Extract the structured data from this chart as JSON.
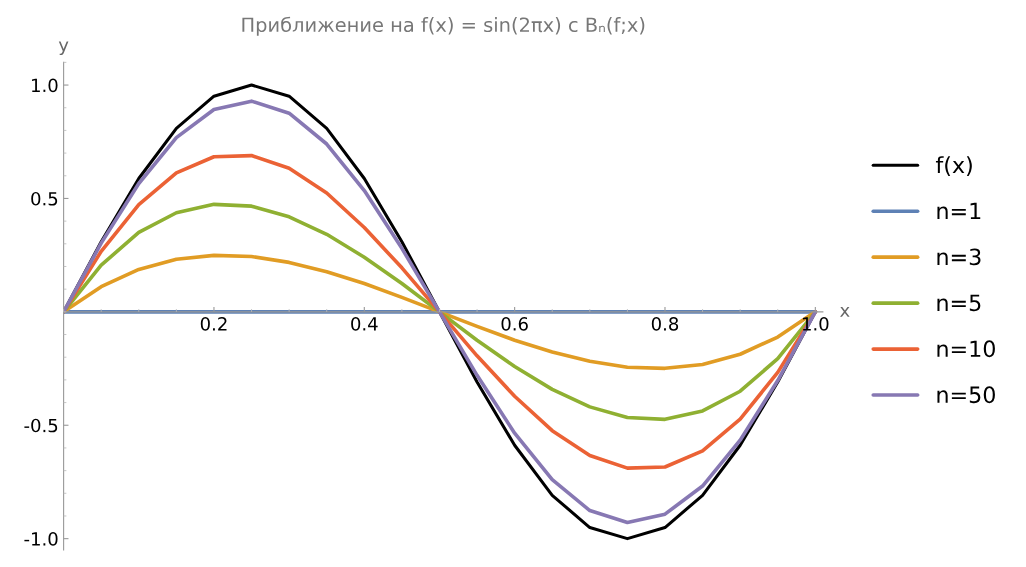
{
  "chart_data": {
    "type": "line",
    "title": "Приближение на f(x) = sin(2πx) с Bₙ(f;x)",
    "xlabel": "x",
    "ylabel": "y",
    "x": [
      0,
      0.05,
      0.1,
      0.15,
      0.2,
      0.25,
      0.3,
      0.35,
      0.4,
      0.45,
      0.5,
      0.55,
      0.6,
      0.65,
      0.7,
      0.75,
      0.8,
      0.85,
      0.9,
      0.95,
      1.0
    ],
    "series": [
      {
        "name": "f(x)",
        "color": "#000000",
        "values": [
          0,
          0.309,
          0.588,
          0.809,
          0.951,
          1,
          0.951,
          0.809,
          0.588,
          0.309,
          0,
          -0.309,
          -0.588,
          -0.809,
          -0.951,
          -1,
          -0.951,
          -0.809,
          -0.588,
          -0.309,
          0
        ]
      },
      {
        "name": "n=1",
        "color": "#5e81b5",
        "values": [
          0,
          0,
          0,
          0,
          0,
          0,
          0,
          0,
          0,
          0,
          0,
          0,
          0,
          0,
          0,
          0,
          0,
          0,
          0,
          0,
          0
        ]
      },
      {
        "name": "n=3",
        "color": "#e19c24",
        "values": [
          0,
          0.111,
          0.187,
          0.232,
          0.249,
          0.244,
          0.218,
          0.177,
          0.125,
          0.064,
          0,
          -0.064,
          -0.125,
          -0.177,
          -0.218,
          -0.244,
          -0.249,
          -0.232,
          -0.187,
          -0.111,
          0
        ]
      },
      {
        "name": "n=5",
        "color": "#8fb032",
        "values": [
          0,
          0.206,
          0.35,
          0.437,
          0.474,
          0.466,
          0.419,
          0.342,
          0.241,
          0.125,
          0,
          -0.125,
          -0.241,
          -0.342,
          -0.419,
          -0.466,
          -0.474,
          -0.437,
          -0.35,
          -0.206,
          0
        ]
      },
      {
        "name": "n=10",
        "color": "#eb6235",
        "values": [
          0,
          0.267,
          0.473,
          0.613,
          0.684,
          0.689,
          0.633,
          0.524,
          0.372,
          0.194,
          0,
          -0.194,
          -0.372,
          -0.524,
          -0.633,
          -0.689,
          -0.684,
          -0.613,
          -0.473,
          -0.267,
          0
        ]
      },
      {
        "name": "n=50",
        "color": "#8778b3",
        "values": [
          0,
          0.303,
          0.566,
          0.768,
          0.892,
          0.929,
          0.876,
          0.74,
          0.535,
          0.28,
          0,
          -0.28,
          -0.535,
          -0.74,
          -0.876,
          -0.929,
          -0.892,
          -0.768,
          -0.566,
          -0.303,
          0
        ]
      }
    ],
    "xlim": [
      0,
      1.01
    ],
    "ylim": [
      -1.05,
      1.1
    ],
    "xticks": [
      0.2,
      0.4,
      0.6,
      0.8,
      {
        "value": 1,
        "label": "1.0"
      }
    ],
    "yticks": [
      {
        "value": -1,
        "label": "-1.0"
      },
      -0.5,
      0.5,
      {
        "value": 1,
        "label": "1.0"
      }
    ],
    "grid": false,
    "legend": "right",
    "line_style": "solid",
    "marker": "none"
  }
}
